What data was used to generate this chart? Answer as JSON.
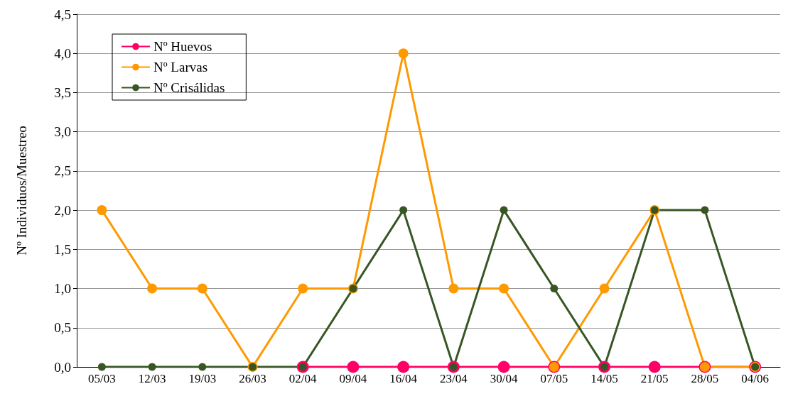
{
  "chart_data": {
    "type": "line",
    "ylabel": "Nº Individuos/Muestreo",
    "categories": [
      "05/03",
      "12/03",
      "19/03",
      "26/03",
      "02/04",
      "09/04",
      "16/04",
      "23/04",
      "30/04",
      "07/05",
      "14/05",
      "21/05",
      "28/05",
      "04/06"
    ],
    "series": [
      {
        "name": "Nº Huevos",
        "color": "#ff0066",
        "values": [
          null,
          null,
          null,
          null,
          0,
          0,
          0,
          0,
          0,
          0,
          0,
          0,
          0,
          0
        ]
      },
      {
        "name": "Nº Larvas",
        "color": "#ff9900",
        "values": [
          2,
          1,
          1,
          0,
          1,
          1,
          4,
          1,
          1,
          0,
          1,
          2,
          0,
          0
        ]
      },
      {
        "name": "Nº Crisálidas",
        "color": "#375623",
        "values": [
          0,
          0,
          0,
          0,
          0,
          1,
          2,
          0,
          2,
          1,
          0,
          2,
          2,
          0
        ]
      }
    ],
    "ylim": [
      0,
      4.5
    ],
    "yticks": [
      {
        "value": 0,
        "label": "0,0"
      },
      {
        "value": 0.5,
        "label": "0,5"
      },
      {
        "value": 1,
        "label": "1,0"
      },
      {
        "value": 1.5,
        "label": "1,5"
      },
      {
        "value": 2,
        "label": "2,0"
      },
      {
        "value": 2.5,
        "label": "2,5"
      },
      {
        "value": 3,
        "label": "3,0"
      },
      {
        "value": 3.5,
        "label": "3,5"
      },
      {
        "value": 4,
        "label": "4,0"
      },
      {
        "value": 4.5,
        "label": "4,5"
      }
    ],
    "grid": "y",
    "legend": "top left",
    "marker": "circle",
    "line_style": "solid"
  }
}
